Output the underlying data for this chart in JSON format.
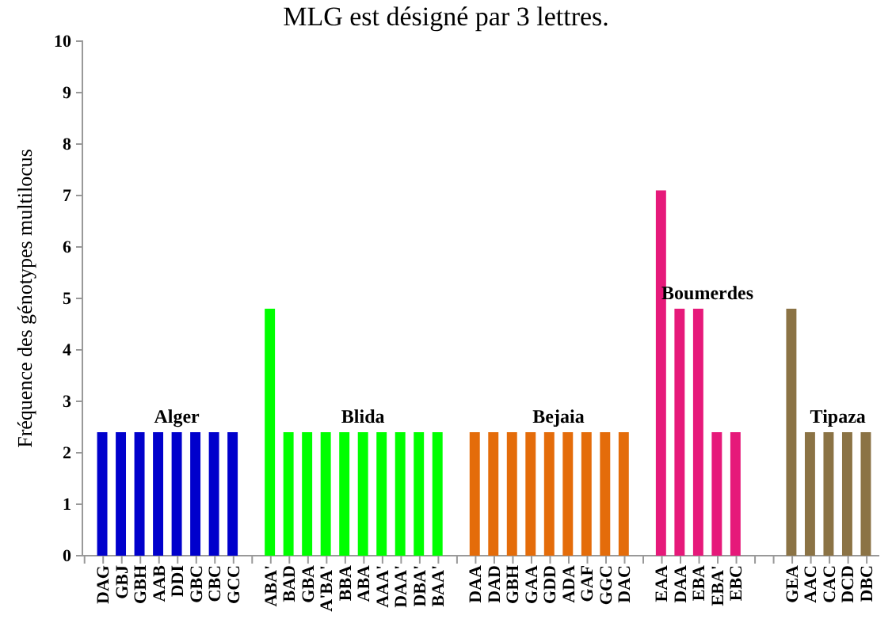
{
  "chart_data": {
    "type": "bar",
    "title": "MLG est désigné par 3 lettres.",
    "ylabel": "Fréquence des génotypes multilocus",
    "categories": [
      "DAG",
      "GBJ",
      "GBH",
      "AAB",
      "DDI",
      "GBC",
      "CBC",
      "GCC",
      null,
      "ABA'",
      "BAD",
      "GBA",
      "A'BA'",
      "BBA",
      "ABA",
      "AAA'",
      "DAA'",
      "DBA'",
      "BAA'",
      null,
      "DAA",
      "DAD",
      "GBH",
      "GAA",
      "GDD",
      "ADA",
      "GAF",
      "GGC",
      "DAC",
      null,
      "EAA",
      "DAA",
      "EBA",
      "EBA'",
      "EBC",
      null,
      null,
      "GEA",
      "AAC",
      "CAC",
      "DCD",
      "DBC"
    ],
    "values": [
      2.4,
      2.4,
      2.4,
      2.4,
      2.4,
      2.4,
      2.4,
      2.4,
      null,
      4.8,
      2.4,
      2.4,
      2.4,
      2.4,
      2.4,
      2.4,
      2.4,
      2.4,
      2.4,
      null,
      2.4,
      2.4,
      2.4,
      2.4,
      2.4,
      2.4,
      2.4,
      2.4,
      2.4,
      null,
      7.1,
      4.8,
      4.8,
      2.4,
      2.4,
      null,
      null,
      4.8,
      2.4,
      2.4,
      2.4,
      2.4
    ],
    "colors": [
      "#0000cc",
      "#0000cc",
      "#0000cc",
      "#0000cc",
      "#0000cc",
      "#0000cc",
      "#0000cc",
      "#0000cc",
      null,
      "#00ff00",
      "#00ff00",
      "#00ff00",
      "#00ff00",
      "#00ff00",
      "#00ff00",
      "#00ff00",
      "#00ff00",
      "#00ff00",
      "#00ff00",
      null,
      "#e46c0a",
      "#e46c0a",
      "#e46c0a",
      "#e46c0a",
      "#e46c0a",
      "#e46c0a",
      "#e46c0a",
      "#e46c0a",
      "#e46c0a",
      null,
      "#e6197a",
      "#e6197a",
      "#e6197a",
      "#e6197a",
      "#e6197a",
      null,
      null,
      "#8b7345",
      "#8b7345",
      "#8b7345",
      "#8b7345",
      "#8b7345"
    ],
    "ylim": [
      0,
      10
    ],
    "yticks": [
      0,
      1,
      2,
      3,
      4,
      5,
      6,
      7,
      8,
      9,
      10
    ],
    "grid": false,
    "annotations": [
      "Alger",
      "Blida",
      "Bejaia",
      "Boumerdes",
      "Tipaza"
    ]
  }
}
